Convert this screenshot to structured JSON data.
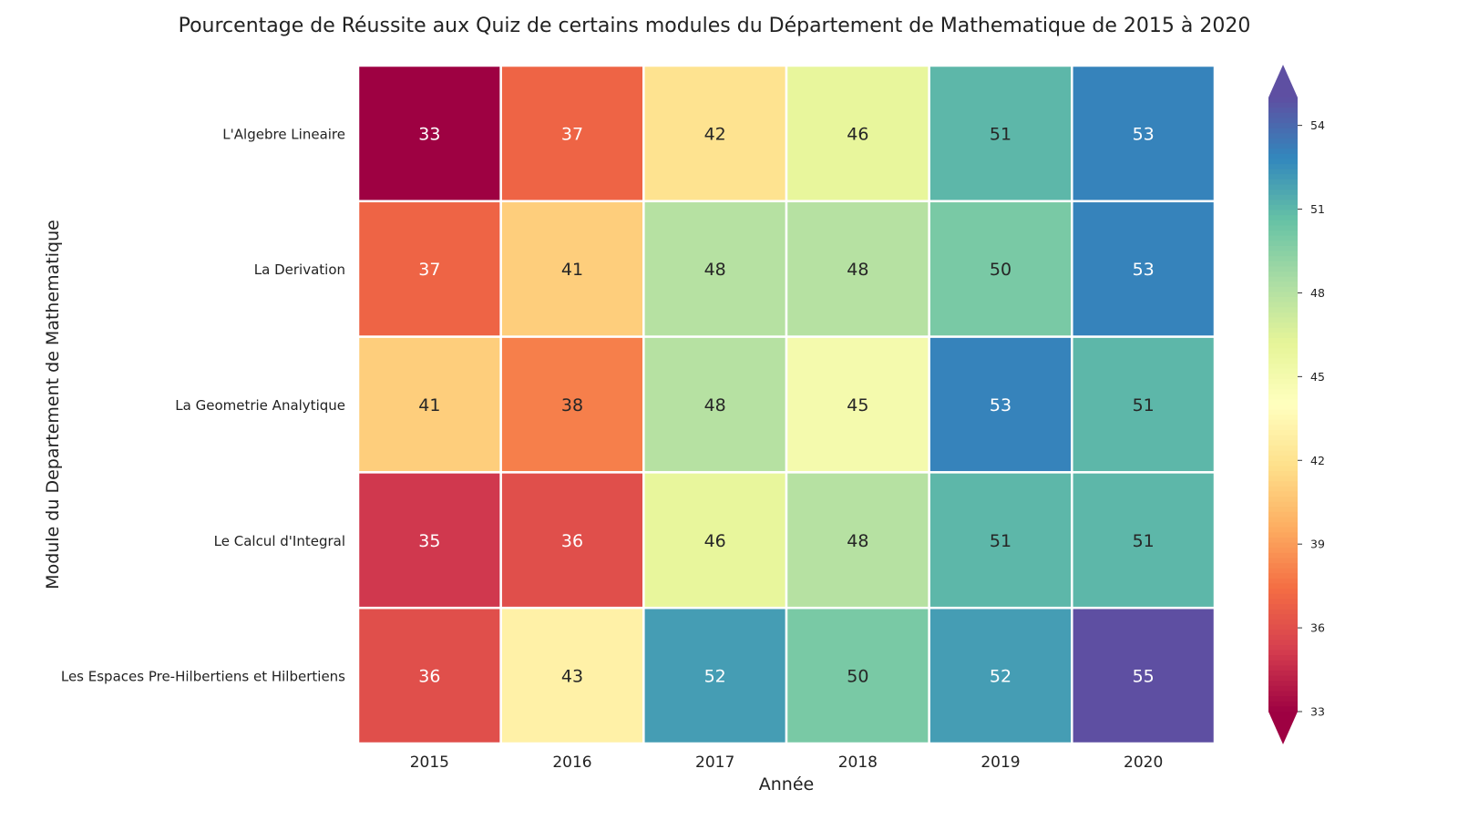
{
  "chart_data": {
    "type": "heatmap",
    "title": "Pourcentage de Réussite aux Quiz de certains modules du Département de Mathematique de 2015 à 2020",
    "xlabel": "Année",
    "ylabel": "Module du Departement de Mathematique",
    "x_categories": [
      "2015",
      "2016",
      "2017",
      "2018",
      "2019",
      "2020"
    ],
    "y_categories": [
      "L'Algebre Lineaire",
      "La Derivation",
      "La Geometrie Analytique",
      "Le Calcul d'Integral",
      "Les Espaces Pre-Hilbertiens et Hilbertiens"
    ],
    "values": [
      [
        33,
        37,
        42,
        46,
        51,
        53
      ],
      [
        37,
        41,
        48,
        48,
        50,
        53
      ],
      [
        41,
        38,
        48,
        45,
        53,
        51
      ],
      [
        35,
        36,
        46,
        48,
        51,
        51
      ],
      [
        36,
        43,
        52,
        50,
        52,
        55
      ]
    ],
    "colormap": "Spectral",
    "colorbar": {
      "range": [
        33,
        55
      ],
      "ticks": [
        33,
        36,
        39,
        42,
        45,
        48,
        51,
        54
      ],
      "extend": "both"
    },
    "annotations": true,
    "grid": false
  }
}
